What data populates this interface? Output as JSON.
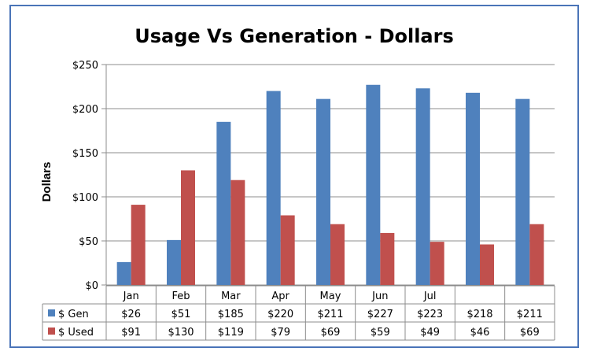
{
  "chart_data": {
    "type": "bar",
    "title": "Usage Vs Generation - Dollars",
    "xlabel": "",
    "ylabel": "Dollars",
    "ylim": [
      0,
      250
    ],
    "yticks": [
      "$0",
      "$50",
      "$100",
      "$150",
      "$200",
      "$250"
    ],
    "ytick_values": [
      0,
      50,
      100,
      150,
      200,
      250
    ],
    "grid": true,
    "legend": "data-table-left",
    "categories": [
      "Jan",
      "Feb",
      "Mar",
      "Apr",
      "May",
      "Jun",
      "Jul",
      "",
      ""
    ],
    "series": [
      {
        "name": "$ Gen",
        "color": "#4f81bd",
        "values": [
          26,
          51,
          185,
          220,
          211,
          227,
          223,
          218,
          211
        ],
        "labels": [
          "$26",
          "$51",
          "$185",
          "$220",
          "$211",
          "$227",
          "$223",
          "$218",
          "$211"
        ]
      },
      {
        "name": "$ Used",
        "color": "#c0504d",
        "values": [
          91,
          130,
          119,
          79,
          69,
          59,
          49,
          46,
          69
        ],
        "labels": [
          "$91",
          "$130",
          "$119",
          "$79",
          "$69",
          "$59",
          "$49",
          "$46",
          "$69"
        ]
      }
    ]
  }
}
